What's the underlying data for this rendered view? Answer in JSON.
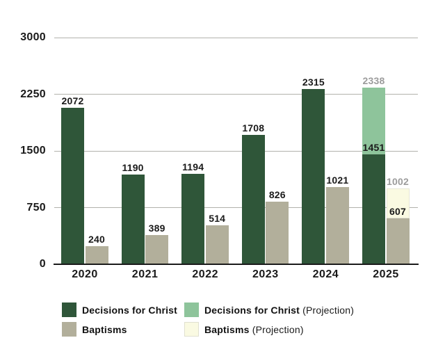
{
  "chart_data": {
    "type": "bar",
    "title": "",
    "xlabel": "",
    "ylabel": "",
    "categories": [
      "2020",
      "2021",
      "2022",
      "2023",
      "2024",
      "2025"
    ],
    "ylim": [
      0,
      3000
    ],
    "yticks": [
      0,
      750,
      1500,
      2250,
      3000
    ],
    "grid": true,
    "legend_position": "bottom",
    "series": [
      {
        "name": "Decisions for Christ",
        "kind": "actual",
        "color": "#2f5639",
        "values": [
          2072,
          1190,
          1194,
          1708,
          2315,
          1451
        ]
      },
      {
        "name": "Decisions for Christ (Projection)",
        "kind": "projection",
        "stacked_on": "Decisions for Christ",
        "color": "#8ec49b",
        "totals": [
          null,
          null,
          null,
          null,
          null,
          2338
        ]
      },
      {
        "name": "Baptisms",
        "kind": "actual",
        "color": "#b2af9b",
        "values": [
          240,
          389,
          514,
          826,
          1021,
          607
        ]
      },
      {
        "name": "Baptisms (Projection)",
        "kind": "projection",
        "stacked_on": "Baptisms",
        "color": "#fafae2",
        "totals": [
          null,
          null,
          null,
          null,
          null,
          1002
        ]
      }
    ],
    "value_label_color": "#1a1a1a",
    "projection_label_color": "#9c9c9c"
  },
  "legend": {
    "items": [
      {
        "label": "Decisions for Christ",
        "suffix": "",
        "color": "#2f5639",
        "bordered": false
      },
      {
        "label": "Baptisms",
        "suffix": "",
        "color": "#b2af9b",
        "bordered": false
      },
      {
        "label": "Decisions for Christ",
        "suffix": "(Projection)",
        "color": "#8ec49b",
        "bordered": false
      },
      {
        "label": "Baptisms",
        "suffix": "(Projection)",
        "color": "#fafae2",
        "bordered": true
      }
    ]
  },
  "colors": {
    "background": "#ffffff",
    "gridline": "#b2b2ac",
    "axis_line": "#1a1a1a",
    "tick_text": "#1a1a1a"
  }
}
